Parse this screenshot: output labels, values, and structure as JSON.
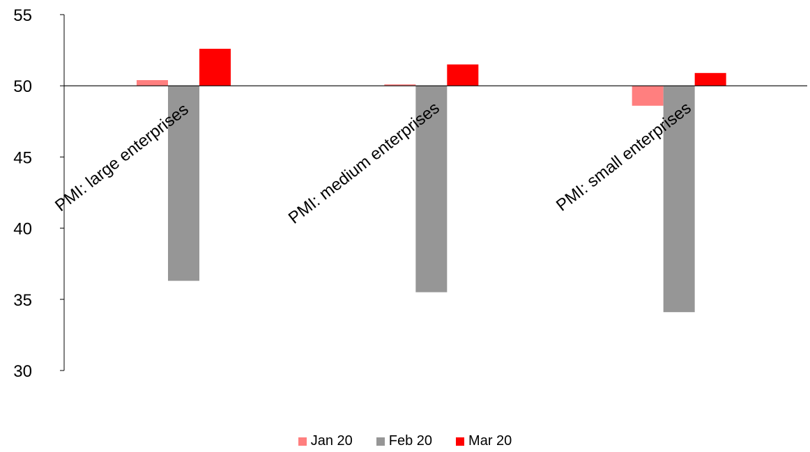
{
  "chart_data": {
    "type": "bar",
    "baseline": 50,
    "ylim": [
      30,
      55
    ],
    "yticks": [
      "30",
      "35",
      "40",
      "45",
      "50",
      "55"
    ],
    "categories": [
      "PMI: large enterprises",
      "PMI: medium enterprises",
      "PMI: small enterprises"
    ],
    "series": [
      {
        "name": "Jan 20",
        "color": "#ff7f7f",
        "values": [
          50.4,
          50.1,
          48.6
        ]
      },
      {
        "name": "Feb 20",
        "color": "#969696",
        "values": [
          36.3,
          35.5,
          34.1
        ]
      },
      {
        "name": "Mar 20",
        "color": "#ff0000",
        "values": [
          52.6,
          51.5,
          50.9
        ]
      }
    ],
    "legend_position": "bottom",
    "grid": false
  }
}
